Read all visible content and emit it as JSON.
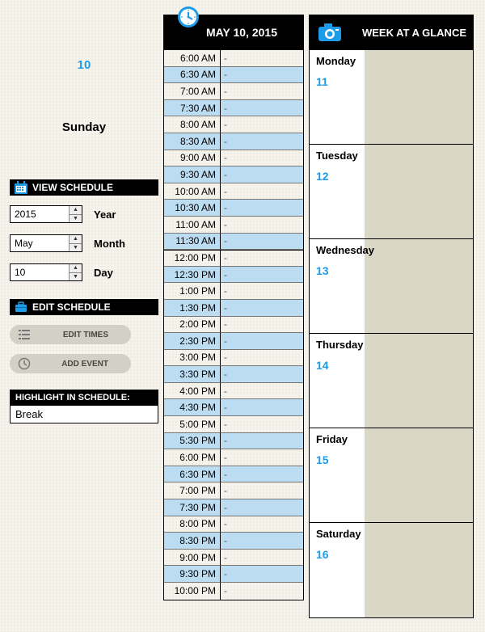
{
  "colors": {
    "accent": "#1e9be9",
    "header_bg": "#000000",
    "header_fg": "#ffffff",
    "shaded_row": "#bcdcf2",
    "week_shade": "#dad7c6",
    "pill_bg": "#d3d0c7",
    "page_bg": "#f5f3eb"
  },
  "left": {
    "day_number": "10",
    "day_name": "Sunday",
    "view_schedule_title": "VIEW SCHEDULE",
    "year": {
      "value": "2015",
      "label": "Year"
    },
    "month": {
      "value": "May",
      "label": "Month"
    },
    "day": {
      "value": "10",
      "label": "Day"
    },
    "edit_schedule_title": "EDIT SCHEDULE",
    "edit_times_btn": "EDIT TIMES",
    "add_event_btn": "ADD EVENT",
    "highlight_title": "HIGHLIGHT IN SCHEDULE:",
    "highlight_value": "Break"
  },
  "mid": {
    "date_title": "MAY 10, 2015",
    "slots": [
      {
        "t": "6:00 AM",
        "s": false
      },
      {
        "t": "6:30 AM",
        "s": true
      },
      {
        "t": "7:00 AM",
        "s": false
      },
      {
        "t": "7:30 AM",
        "s": true
      },
      {
        "t": "8:00 AM",
        "s": false
      },
      {
        "t": "8:30 AM",
        "s": true
      },
      {
        "t": "9:00 AM",
        "s": false
      },
      {
        "t": "9:30 AM",
        "s": true
      },
      {
        "t": "10:00 AM",
        "s": false
      },
      {
        "t": "10:30 AM",
        "s": true
      },
      {
        "t": "11:00 AM",
        "s": false
      },
      {
        "t": "11:30 AM",
        "s": true
      },
      {
        "t": "12:00 PM",
        "s": false,
        "noon": true
      },
      {
        "t": "12:30 PM",
        "s": true
      },
      {
        "t": "1:00 PM",
        "s": false
      },
      {
        "t": "1:30 PM",
        "s": true
      },
      {
        "t": "2:00 PM",
        "s": false
      },
      {
        "t": "2:30 PM",
        "s": true
      },
      {
        "t": "3:00 PM",
        "s": false
      },
      {
        "t": "3:30 PM",
        "s": true
      },
      {
        "t": "4:00 PM",
        "s": false
      },
      {
        "t": "4:30 PM",
        "s": true
      },
      {
        "t": "5:00 PM",
        "s": false
      },
      {
        "t": "5:30 PM",
        "s": true
      },
      {
        "t": "6:00 PM",
        "s": false
      },
      {
        "t": "6:30 PM",
        "s": true
      },
      {
        "t": "7:00 PM",
        "s": false
      },
      {
        "t": "7:30 PM",
        "s": true
      },
      {
        "t": "8:00 PM",
        "s": false
      },
      {
        "t": "8:30 PM",
        "s": true
      },
      {
        "t": "9:00 PM",
        "s": false
      },
      {
        "t": "9:30 PM",
        "s": true
      },
      {
        "t": "10:00 PM",
        "s": false
      }
    ]
  },
  "right": {
    "title": "WEEK AT A GLANCE",
    "days": [
      {
        "name": "Monday",
        "num": "11"
      },
      {
        "name": "Tuesday",
        "num": "12"
      },
      {
        "name": "Wednesday",
        "num": "13"
      },
      {
        "name": "Thursday",
        "num": "14"
      },
      {
        "name": "Friday",
        "num": "15"
      },
      {
        "name": "Saturday",
        "num": "16"
      }
    ]
  }
}
